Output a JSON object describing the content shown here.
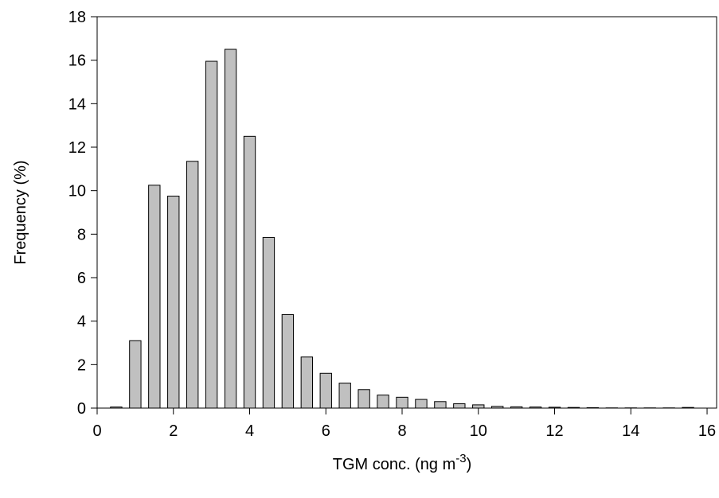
{
  "chart_data": {
    "type": "bar",
    "x_label": {
      "text": "TGM conc. (ng m",
      "superscript": "-3",
      "suffix": ")"
    },
    "y_label": "Frequency (%)",
    "x": [
      0.5,
      1.0,
      1.5,
      2.0,
      2.5,
      3.0,
      3.5,
      4.0,
      4.5,
      5.0,
      5.5,
      6.0,
      6.5,
      7.0,
      7.5,
      8.0,
      8.5,
      9.0,
      9.5,
      10.0,
      10.5,
      11.0,
      11.5,
      12.0,
      12.5,
      13.0,
      13.5,
      14.0,
      14.5,
      15.0,
      15.5
    ],
    "values": [
      0.05,
      3.1,
      10.25,
      9.75,
      11.35,
      15.95,
      16.5,
      12.5,
      7.85,
      4.3,
      2.35,
      1.6,
      1.15,
      0.85,
      0.6,
      0.5,
      0.4,
      0.3,
      0.2,
      0.15,
      0.08,
      0.06,
      0.05,
      0.04,
      0.03,
      0.02,
      0.01,
      0.01,
      0.01,
      0.01,
      0.03
    ],
    "color": "#c0c0c0",
    "xlim": [
      0,
      16.25
    ],
    "xticks": [
      0,
      2,
      4,
      6,
      8,
      10,
      12,
      14,
      16
    ],
    "ylim": [
      0,
      18
    ],
    "yticks": [
      0,
      2,
      4,
      6,
      8,
      10,
      12,
      14,
      16,
      18
    ]
  }
}
